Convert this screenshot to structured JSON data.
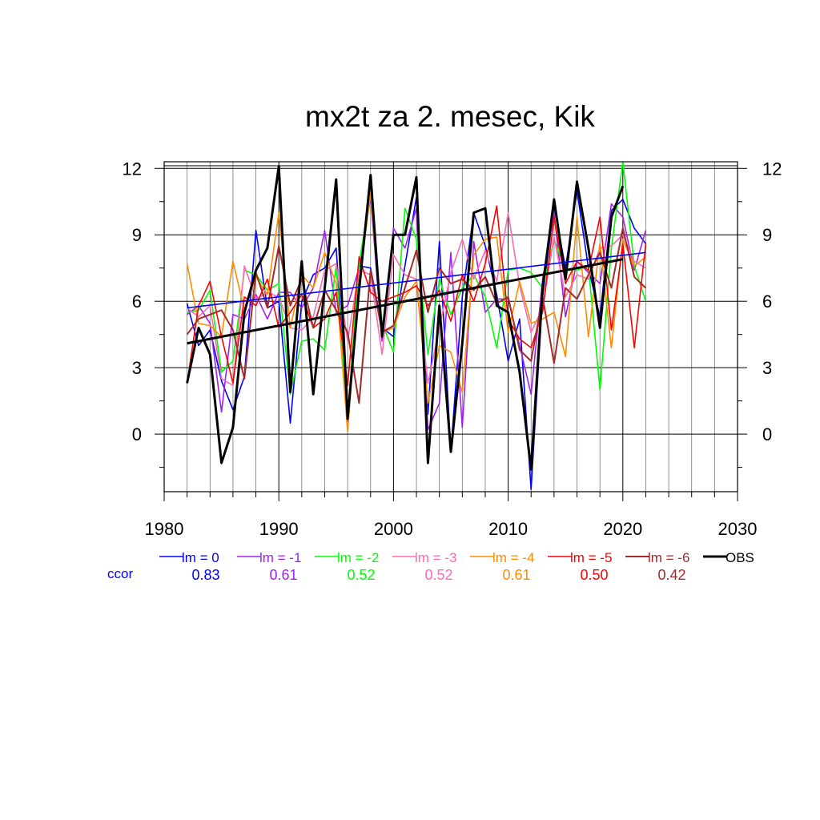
{
  "chart_data": {
    "type": "line",
    "title": "mx2t za 2. mesec, Kik",
    "xlabel": "",
    "ylabel": "",
    "xlim": [
      1980,
      2030
    ],
    "ylim": [
      -2.6,
      12.3
    ],
    "x_ticks": [
      1980,
      1990,
      2000,
      2010,
      2020,
      2030
    ],
    "x_tick_labels": [
      "1980",
      "1990",
      "2000",
      "2010",
      "2020",
      "2030"
    ],
    "y_ticks": [
      0,
      3,
      6,
      9,
      12
    ],
    "y_tick_labels": [
      "0",
      "3",
      "6",
      "9",
      "12"
    ],
    "grid": true,
    "legend_position": "bottom",
    "ccor_label": "ccor",
    "x": [
      1982,
      1983,
      1984,
      1985,
      1986,
      1987,
      1988,
      1989,
      1990,
      1991,
      1992,
      1993,
      1994,
      1995,
      1996,
      1997,
      1998,
      1999,
      2000,
      2001,
      2002,
      2003,
      2004,
      2005,
      2006,
      2007,
      2008,
      2009,
      2010,
      2011,
      2012,
      2013,
      2014,
      2015,
      2016,
      2017,
      2018,
      2019,
      2020,
      2021,
      2022
    ],
    "series": [
      {
        "name": "lm = 0",
        "ccor": "0.83",
        "color": "#0000ff",
        "width": 1.6,
        "values": [
          5.9,
          4.0,
          4.7,
          2.4,
          1.1,
          2.6,
          9.2,
          5.7,
          6.0,
          0.5,
          6.0,
          7.2,
          7.5,
          8.4,
          0.6,
          7.6,
          7.5,
          4.8,
          4.4,
          7.6,
          10.7,
          0.9,
          8.7,
          -0.8,
          6.2,
          10.0,
          8.5,
          6.3,
          3.3,
          5.2,
          -2.5,
          6.2,
          10.3,
          7.5,
          11.0,
          7.5,
          5.3,
          10.1,
          10.6,
          9.3,
          8.6
        ]
      },
      {
        "name": "lm = -1",
        "ccor": "0.61",
        "color": "#a020f0",
        "width": 1.6,
        "values": [
          5.4,
          5.8,
          5.0,
          1.0,
          5.4,
          5.2,
          6.3,
          5.2,
          6.4,
          6.4,
          5.7,
          6.6,
          9.2,
          5.5,
          5.8,
          7.5,
          10.7,
          4.2,
          9.3,
          8.4,
          10.2,
          0.2,
          1.4,
          8.2,
          0.3,
          8.7,
          5.5,
          6.1,
          6.1,
          4.0,
          1.8,
          7.0,
          10.0,
          5.3,
          7.8,
          7.3,
          6.8,
          10.4,
          9.8,
          7.4,
          9.2
        ]
      },
      {
        "name": "lm = -2",
        "ccor": "0.52",
        "color": "#00ff00",
        "width": 1.6,
        "values": [
          5.5,
          5.6,
          6.5,
          2.8,
          3.3,
          7.4,
          7.2,
          6.5,
          6.8,
          1.8,
          4.2,
          4.3,
          3.8,
          7.6,
          0.8,
          7.7,
          10.9,
          5.0,
          3.7,
          10.2,
          8.8,
          3.6,
          7.0,
          5.4,
          6.6,
          7.2,
          6.2,
          3.9,
          7.4,
          7.5,
          7.3,
          6.6,
          8.8,
          7.4,
          7.4,
          7.6,
          2.0,
          8.4,
          12.3,
          7.6,
          6.0
        ]
      },
      {
        "name": "lm = -3",
        "ccor": "0.52",
        "color": "#ff69b4",
        "width": 1.6,
        "values": [
          5.7,
          5.3,
          5.8,
          2.5,
          2.2,
          7.6,
          6.1,
          6.4,
          6.2,
          4.8,
          4.7,
          5.3,
          7.4,
          7.7,
          4.2,
          7.4,
          7.2,
          3.6,
          8.1,
          7.2,
          7.0,
          2.3,
          4.8,
          7.3,
          8.8,
          7.0,
          8.3,
          6.9,
          10.0,
          6.7,
          4.6,
          5.7,
          8.9,
          6.2,
          7.2,
          7.0,
          8.4,
          8.5,
          9.0,
          7.8,
          7.5
        ]
      },
      {
        "name": "lm = -4",
        "ccor": "0.61",
        "color": "#ff8c00",
        "width": 1.6,
        "values": [
          7.7,
          5.0,
          4.9,
          4.4,
          7.8,
          5.6,
          7.1,
          6.3,
          10.0,
          4.8,
          7.2,
          6.6,
          8.2,
          6.8,
          0.1,
          6.8,
          10.9,
          4.6,
          4.8,
          6.2,
          6.9,
          1.4,
          4.0,
          3.7,
          1.9,
          8.1,
          8.8,
          8.9,
          4.6,
          6.9,
          5.0,
          5.2,
          5.5,
          3.5,
          9.8,
          4.4,
          8.6,
          3.9,
          8.8,
          7.6,
          8.0
        ]
      },
      {
        "name": "lm = -5",
        "ccor": "0.50",
        "color": "#ff0000",
        "width": 1.6,
        "values": [
          2.3,
          5.8,
          6.9,
          4.4,
          2.3,
          6.2,
          5.8,
          7.0,
          4.8,
          5.5,
          6.3,
          4.8,
          5.2,
          6.4,
          2.2,
          8.0,
          6.4,
          6.0,
          6.2,
          6.4,
          6.7,
          5.8,
          6.5,
          5.1,
          7.2,
          6.0,
          7.7,
          10.3,
          5.2,
          4.3,
          3.9,
          5.5,
          9.8,
          6.8,
          7.8,
          7.4,
          9.8,
          4.7,
          8.6,
          3.9,
          8.6
        ]
      },
      {
        "name": "lm = -6",
        "ccor": "0.42",
        "color": "#a52a2a",
        "width": 2.0,
        "values": [
          4.5,
          5.2,
          5.4,
          5.6,
          4.7,
          2.5,
          7.3,
          5.7,
          8.5,
          5.8,
          7.0,
          4.8,
          6.5,
          5.6,
          4.6,
          1.4,
          7.4,
          4.6,
          4.9,
          6.6,
          8.3,
          5.5,
          7.5,
          6.8,
          7.0,
          6.5,
          7.1,
          5.9,
          6.2,
          3.8,
          3.3,
          6.2,
          3.2,
          6.6,
          6.1,
          7.2,
          8.2,
          6.6,
          9.3,
          7.1,
          6.6
        ]
      },
      {
        "name": "OBS",
        "ccor": "",
        "color": "#000000",
        "width": 3.0,
        "values": [
          2.3,
          4.8,
          3.6,
          -1.3,
          0.3,
          5.5,
          7.4,
          8.4,
          12.1,
          1.9,
          7.8,
          1.8,
          6.6,
          11.5,
          0.7,
          6.5,
          11.7,
          4.4,
          9.0,
          9.0,
          11.6,
          -1.3,
          5.8,
          -0.8,
          4.1,
          10.0,
          10.2,
          5.8,
          5.5,
          2.8,
          -1.6,
          6.6,
          10.6,
          7.0,
          11.4,
          8.4,
          4.8,
          9.8,
          11.2,
          null,
          null
        ]
      }
    ],
    "trend_lines": [
      {
        "name": "lm = 0 trend",
        "color": "#0000ff",
        "width": 1.6,
        "x": [
          1982,
          2022
        ],
        "values": [
          5.7,
          8.2
        ]
      },
      {
        "name": "OBS trend",
        "color": "#000000",
        "width": 3.0,
        "x": [
          1982,
          2020
        ],
        "values": [
          4.1,
          7.9
        ]
      }
    ]
  }
}
